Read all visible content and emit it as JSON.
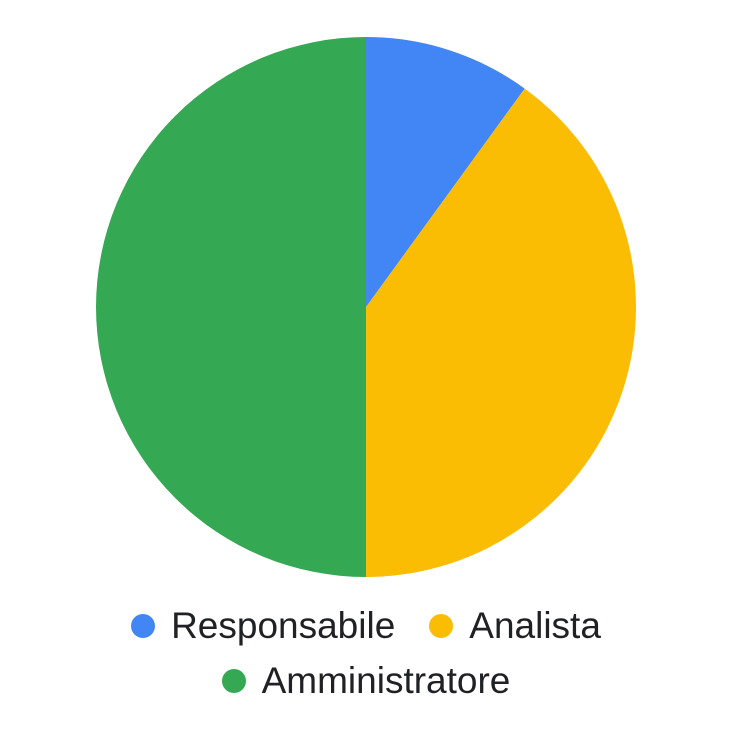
{
  "chart_data": {
    "type": "pie",
    "categories": [
      "Responsabile",
      "Analista",
      "Amministratore"
    ],
    "values": [
      10,
      40,
      50
    ],
    "colors": [
      "#4285F4",
      "#FBBC04",
      "#34A853"
    ],
    "title": "",
    "legend_position": "bottom"
  }
}
